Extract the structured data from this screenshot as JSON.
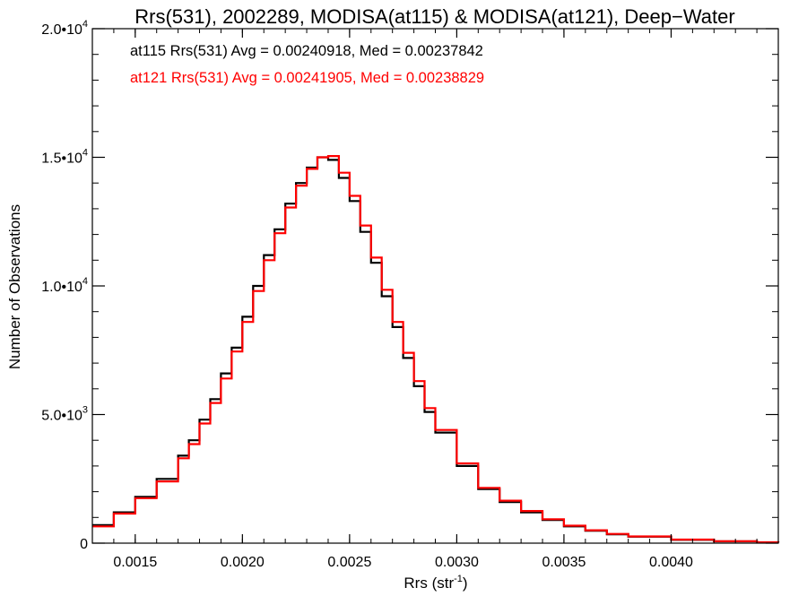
{
  "chart_data": {
    "type": "line",
    "title": "Rrs(531), 2002289, MODISA(at115) & MODISA(at121), Deep−Water",
    "xlabel": "Rrs (str",
    "xlabel_sup": "-1",
    "xlabel_end": ")",
    "ylabel": "Number of Observations",
    "xlim": [
      0.0013,
      0.0045
    ],
    "ylim": [
      0,
      20000
    ],
    "x_ticks": [
      {
        "value": 0.0015,
        "label": "0.0015"
      },
      {
        "value": 0.002,
        "label": "0.0020"
      },
      {
        "value": 0.0025,
        "label": "0.0025"
      },
      {
        "value": 0.003,
        "label": "0.0030"
      },
      {
        "value": 0.0035,
        "label": "0.0035"
      },
      {
        "value": 0.004,
        "label": "0.0040"
      }
    ],
    "y_ticks": [
      {
        "value": 0,
        "mant": "0",
        "exp": ""
      },
      {
        "value": 5000,
        "mant": "5.0•10",
        "exp": "3"
      },
      {
        "value": 10000,
        "mant": "1.0•10",
        "exp": "4"
      },
      {
        "value": 15000,
        "mant": "1.5•10",
        "exp": "4"
      },
      {
        "value": 20000,
        "mant": "2.0•10",
        "exp": "4"
      }
    ],
    "legend": [
      {
        "text": "at115 Rrs(531) Avg = 0.00240918, Med = 0.00237842",
        "color": "#000000"
      },
      {
        "text": "at121 Rrs(531) Avg = 0.00241905, Med = 0.00238829",
        "color": "#ff0000"
      }
    ],
    "series": [
      {
        "color": "#000000",
        "x": [
          0.0013,
          0.0014,
          0.0015,
          0.0016,
          0.0017,
          0.00175,
          0.0018,
          0.00185,
          0.0019,
          0.00195,
          0.002,
          0.00205,
          0.0021,
          0.00215,
          0.0022,
          0.00225,
          0.0023,
          0.00235,
          0.0024,
          0.00245,
          0.0025,
          0.00255,
          0.0026,
          0.00265,
          0.0027,
          0.00275,
          0.0028,
          0.00285,
          0.0029,
          0.003,
          0.0031,
          0.0032,
          0.0033,
          0.0034,
          0.0035,
          0.0036,
          0.0037,
          0.0038,
          0.004,
          0.0042,
          0.0044,
          0.0045
        ],
        "y": [
          700,
          1200,
          1800,
          2500,
          3400,
          4000,
          4800,
          5600,
          6600,
          7600,
          8800,
          10000,
          11200,
          12200,
          13200,
          14000,
          14600,
          15000,
          14900,
          14200,
          13300,
          12100,
          10900,
          9600,
          8400,
          7200,
          6100,
          5100,
          4300,
          3000,
          2100,
          1600,
          1200,
          900,
          650,
          480,
          340,
          250,
          130,
          70,
          30,
          20
        ]
      },
      {
        "color": "#ff0000",
        "x": [
          0.0013,
          0.0014,
          0.0015,
          0.0016,
          0.0017,
          0.00175,
          0.0018,
          0.00185,
          0.0019,
          0.00195,
          0.002,
          0.00205,
          0.0021,
          0.00215,
          0.0022,
          0.00225,
          0.0023,
          0.00235,
          0.0024,
          0.00245,
          0.0025,
          0.00255,
          0.0026,
          0.00265,
          0.0027,
          0.00275,
          0.0028,
          0.00285,
          0.0029,
          0.003,
          0.0031,
          0.0032,
          0.0033,
          0.0034,
          0.0035,
          0.0036,
          0.0037,
          0.0038,
          0.004,
          0.0042,
          0.0044,
          0.0045
        ],
        "y": [
          650,
          1150,
          1750,
          2400,
          3300,
          3850,
          4650,
          5450,
          6400,
          7450,
          8600,
          9800,
          11000,
          12050,
          13050,
          13900,
          14550,
          15000,
          15050,
          14400,
          13500,
          12350,
          11100,
          9850,
          8600,
          7400,
          6300,
          5250,
          4400,
          3100,
          2150,
          1650,
          1250,
          930,
          680,
          500,
          360,
          260,
          140,
          75,
          35,
          25
        ]
      }
    ]
  }
}
